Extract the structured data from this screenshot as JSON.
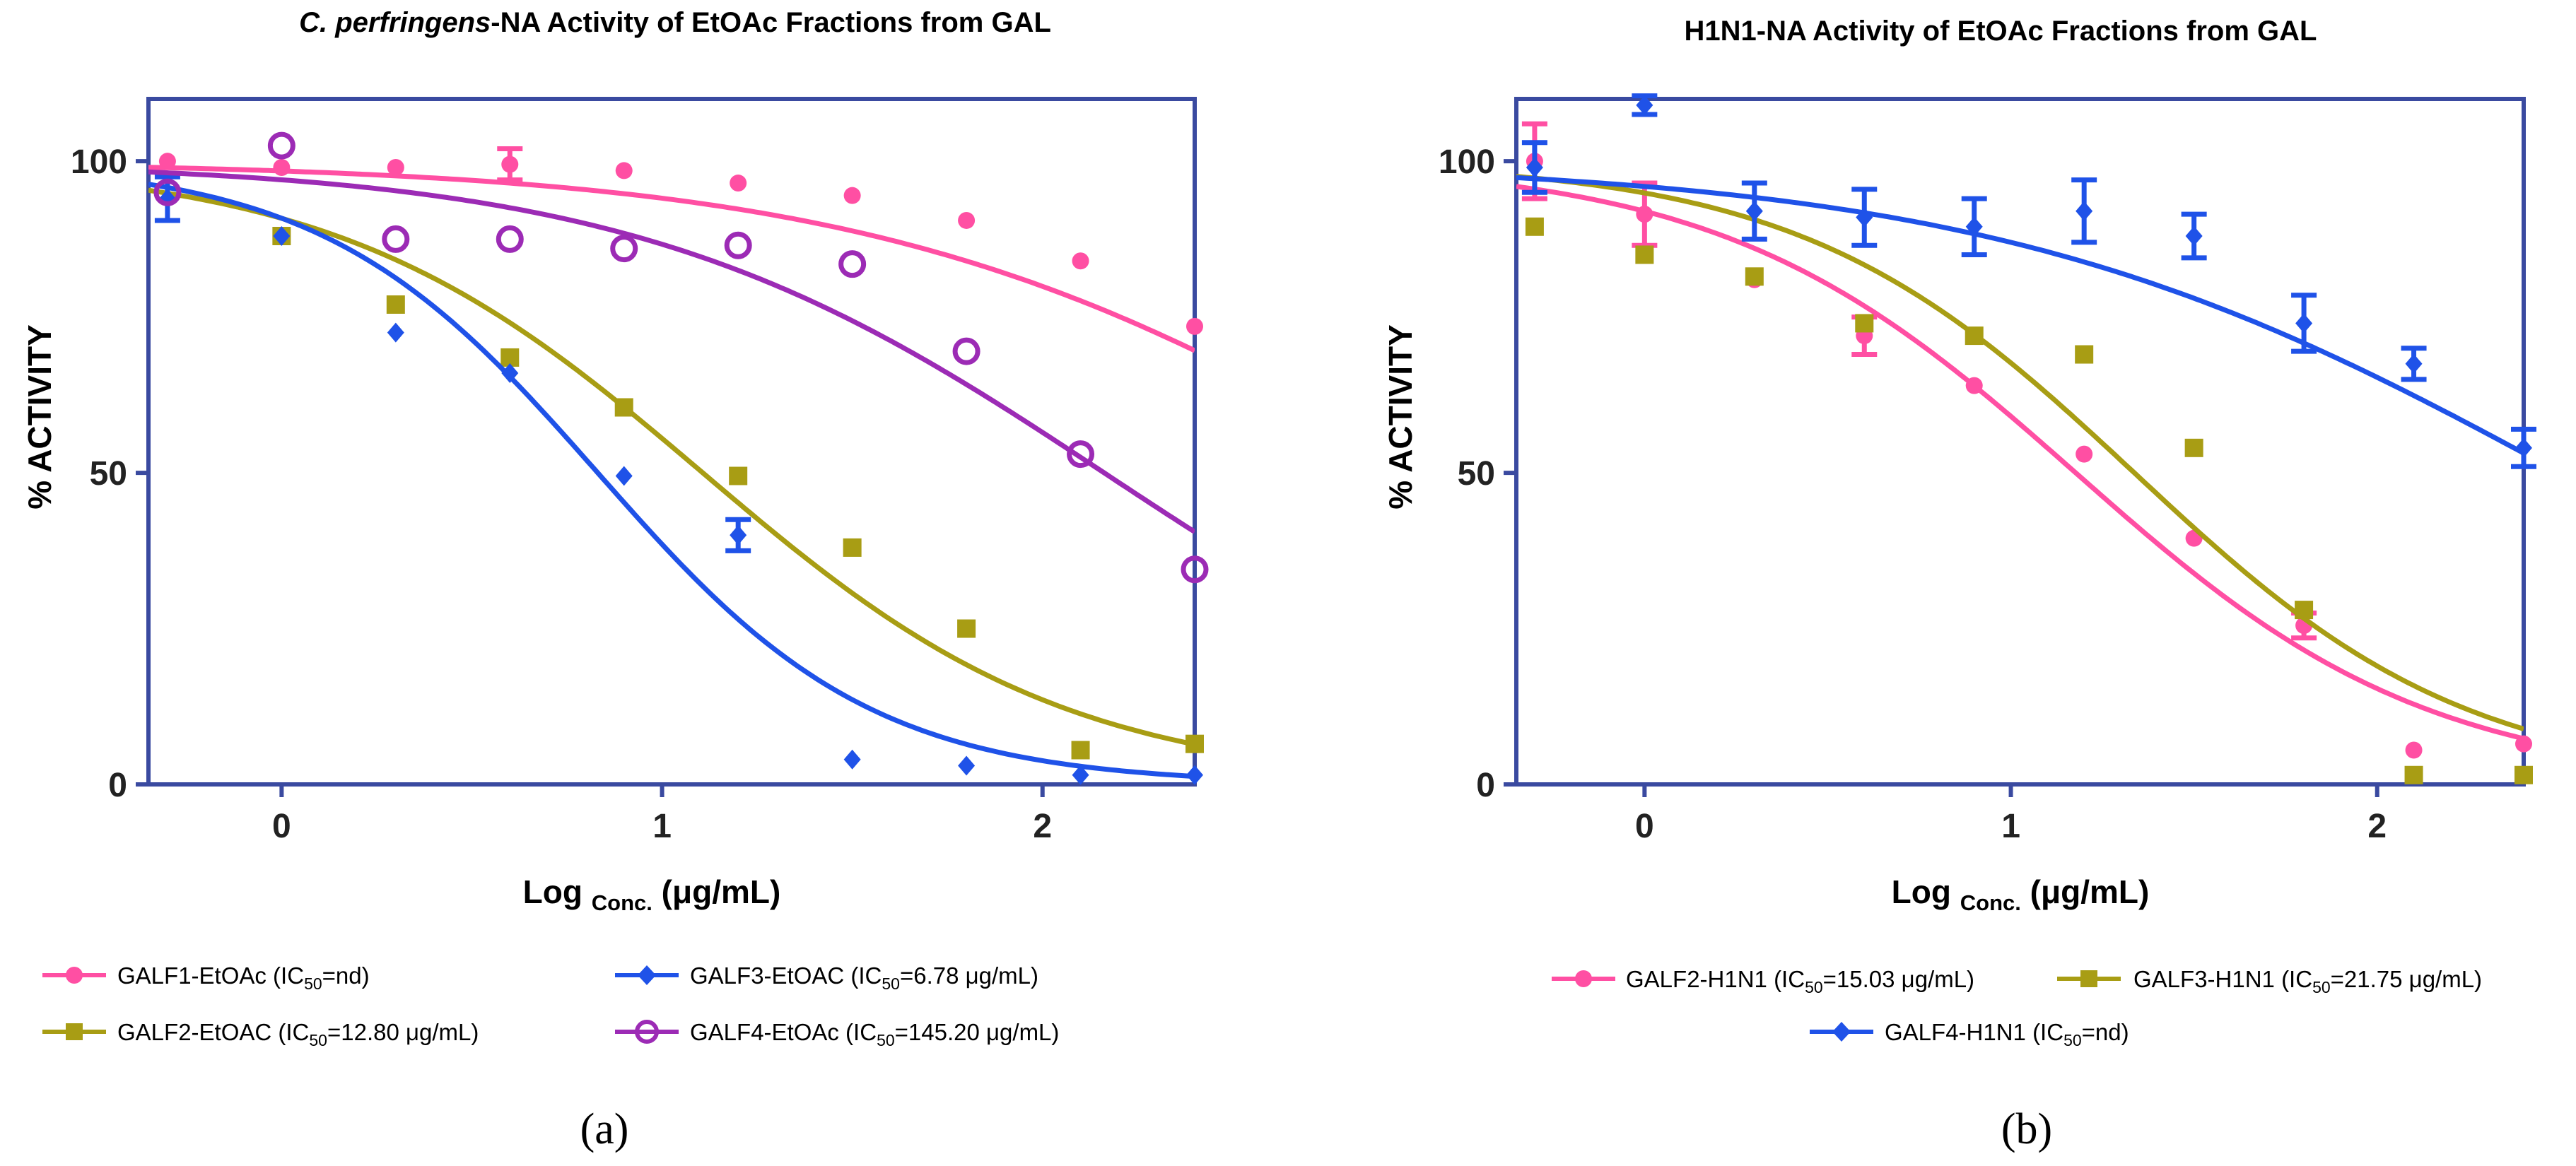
{
  "chart_data": [
    {
      "type": "scatter",
      "panel_label": "(a)",
      "title_italic": "C. perfringens",
      "title_rest": "-NA Activity of EtOAc Fractions from GAL",
      "xlabel_main": "Log",
      "xlabel_sub": "Conc.",
      "xlabel_unit": "(μg/mL)",
      "ylabel": "% ACTIVITY",
      "xlim": [
        -0.35,
        2.4
      ],
      "ylim": [
        0,
        110
      ],
      "xticks": [
        "0",
        "1",
        "2"
      ],
      "xtick_values": [
        0,
        1,
        2
      ],
      "yticks": [
        "0",
        "50",
        "100"
      ],
      "ytick_values": [
        0,
        50,
        100
      ],
      "series": [
        {
          "name": "GALF1-EtOAc",
          "legend_prefix": "GALF1-EtOAc (IC",
          "legend_sub": "50",
          "legend_suffix": "=nd)",
          "color": "#ff4fa3",
          "marker": "circle",
          "x": [
            -0.3,
            0,
            0.3,
            0.6,
            0.9,
            1.2,
            1.5,
            1.8,
            2.1,
            2.4
          ],
          "y": [
            100,
            99,
            99,
            99.5,
            98.5,
            96.5,
            94.5,
            90.5,
            84,
            73.5
          ],
          "err": [
            0,
            0,
            0,
            2.5,
            0,
            0,
            0,
            0,
            0,
            0
          ],
          "fit": {
            "top": 100,
            "bottom": 0,
            "log_ic50": 3.0,
            "hill": 0.6
          }
        },
        {
          "name": "GALF2-EtOAC",
          "legend_prefix": "GALF2-EtOAC (IC",
          "legend_sub": "50",
          "legend_suffix": "=12.80 μg/mL)",
          "color": "#a89d14",
          "marker": "square",
          "x": [
            0,
            0.3,
            0.6,
            0.9,
            1.2,
            1.5,
            1.8,
            2.1,
            2.4
          ],
          "y": [
            88,
            77,
            68.5,
            60.5,
            49.5,
            38,
            25,
            5.5,
            6.5
          ],
          "err": [
            0,
            0,
            0,
            0,
            0,
            0,
            0,
            0,
            0
          ],
          "fit": {
            "top": 100,
            "bottom": 0,
            "log_ic50": 1.107,
            "hill": 0.9
          }
        },
        {
          "name": "GALF3-EtOAC",
          "legend_prefix": "GALF3-EtOAC (IC",
          "legend_sub": "50",
          "legend_suffix": "=6.78 μg/mL)",
          "color": "#1f52e8",
          "marker": "diamond",
          "x": [
            -0.3,
            0,
            0.3,
            0.6,
            0.9,
            1.2,
            1.5,
            1.8,
            2.1,
            2.4
          ],
          "y": [
            94,
            88,
            72.5,
            66,
            49.5,
            40,
            4,
            3,
            1.5,
            1.5
          ],
          "err": [
            3.5,
            0,
            0,
            0,
            0,
            2.5,
            0,
            0,
            0,
            0
          ],
          "fit": {
            "top": 100,
            "bottom": 0,
            "log_ic50": 0.831,
            "hill": 1.2
          }
        },
        {
          "name": "GALF4-EtOAc",
          "legend_prefix": "GALF4-EtOAc (IC",
          "legend_sub": "50",
          "legend_suffix": "=145.20 μg/mL)",
          "color": "#9c2bb5",
          "marker": "ring",
          "x": [
            -0.3,
            0,
            0.3,
            0.6,
            0.9,
            1.2,
            1.5,
            1.8,
            2.1,
            2.4
          ],
          "y": [
            95,
            102.5,
            87.5,
            87.5,
            86,
            86.5,
            83.5,
            69.5,
            53,
            34.5
          ],
          "err": [
            0,
            0,
            0,
            0,
            0,
            0,
            0,
            0,
            0,
            0
          ],
          "fit": {
            "top": 100,
            "bottom": 0,
            "log_ic50": 2.162,
            "hill": 0.7
          }
        }
      ]
    },
    {
      "type": "scatter",
      "panel_label": "(b)",
      "title_italic": "",
      "title_rest": "H1N1-NA Activity of EtOAc Fractions from GAL",
      "xlabel_main": "Log",
      "xlabel_sub": "Conc.",
      "xlabel_unit": "(μg/mL)",
      "ylabel": "% ACTIVITY",
      "xlim": [
        -0.35,
        2.4
      ],
      "ylim": [
        0,
        110
      ],
      "xticks": [
        "0",
        "1",
        "2"
      ],
      "xtick_values": [
        0,
        1,
        2
      ],
      "yticks": [
        "0",
        "50",
        "100"
      ],
      "ytick_values": [
        0,
        50,
        100
      ],
      "series": [
        {
          "name": "GALF2-H1N1",
          "legend_prefix": "GALF2-H1N1 (IC",
          "legend_sub": "50",
          "legend_suffix": "=15.03 μg/mL)",
          "color": "#ff4fa3",
          "marker": "circle",
          "x": [
            -0.3,
            0,
            0.3,
            0.6,
            0.9,
            1.2,
            1.5,
            1.8,
            2.1,
            2.4
          ],
          "y": [
            100,
            91.5,
            81,
            72,
            64,
            53,
            39.5,
            25.5,
            5.5,
            6.5
          ],
          "err": [
            6,
            5,
            0,
            3,
            0,
            0,
            0,
            2,
            0,
            0
          ],
          "fit": {
            "top": 100,
            "bottom": 0,
            "log_ic50": 1.177,
            "hill": 0.9
          }
        },
        {
          "name": "GALF3-H1N1",
          "legend_prefix": "GALF3-H1N1 (IC",
          "legend_sub": "50",
          "legend_suffix": "=21.75 μg/mL)",
          "color": "#a89d14",
          "marker": "square",
          "x": [
            -0.3,
            0,
            0.3,
            0.6,
            0.9,
            1.2,
            1.5,
            1.8,
            2.1,
            2.4
          ],
          "y": [
            89.5,
            85,
            81.5,
            74,
            72,
            69,
            54,
            28,
            1.5,
            1.5
          ],
          "err": [
            0,
            0,
            0,
            0,
            0,
            0,
            0,
            0,
            0,
            0
          ],
          "fit": {
            "top": 100,
            "bottom": 0,
            "log_ic50": 1.337,
            "hill": 0.95
          }
        },
        {
          "name": "GALF4-H1N1",
          "legend_prefix": "GALF4-H1N1 (IC",
          "legend_sub": "50",
          "legend_suffix": "=nd)",
          "color": "#1f52e8",
          "marker": "diamond",
          "x": [
            -0.3,
            0,
            0.3,
            0.6,
            0.9,
            1.2,
            1.5,
            1.8,
            2.1,
            2.4
          ],
          "y": [
            99,
            109,
            92,
            91,
            89.5,
            92,
            88,
            74,
            67.5,
            54
          ],
          "err": [
            4,
            1.5,
            4.5,
            4.5,
            4.5,
            5,
            3.5,
            4.5,
            2.5,
            3
          ],
          "fit": {
            "top": 100,
            "bottom": 0,
            "log_ic50": 2.5,
            "hill": 0.55
          }
        }
      ]
    }
  ]
}
